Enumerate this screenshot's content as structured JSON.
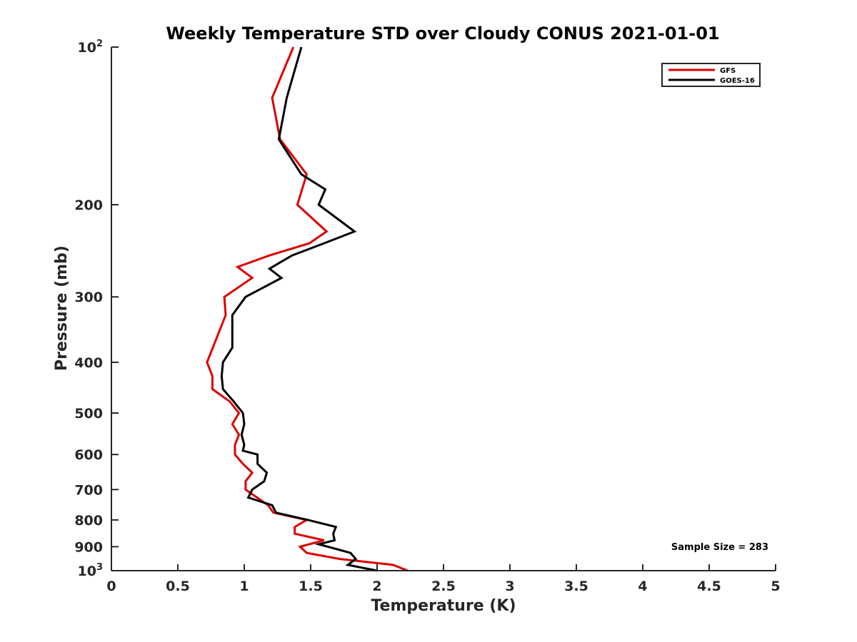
{
  "chart_data": {
    "type": "line",
    "title": "Weekly Temperature STD over Cloudy CONUS 2021-01-01",
    "xlabel": "Temperature (K)",
    "ylabel": "Pressure (mb)",
    "xlim": [
      0,
      5
    ],
    "ylim": [
      100,
      1000
    ],
    "y_scale": "log",
    "y_reversed": true,
    "x_ticks": [
      0,
      0.5,
      1,
      1.5,
      2,
      2.5,
      3,
      3.5,
      4,
      4.5,
      5
    ],
    "x_tick_labels": [
      "0",
      "0.5",
      "1",
      "1.5",
      "2",
      "2.5",
      "3",
      "3.5",
      "4",
      "4.5",
      "5"
    ],
    "y_ticks": [
      {
        "value": 100,
        "base": "10",
        "exp": "2"
      },
      {
        "value": 200,
        "label": "200"
      },
      {
        "value": 300,
        "label": "300"
      },
      {
        "value": 400,
        "label": "400"
      },
      {
        "value": 500,
        "label": "500"
      },
      {
        "value": 600,
        "label": "600"
      },
      {
        "value": 700,
        "label": "700"
      },
      {
        "value": 800,
        "label": "800"
      },
      {
        "value": 900,
        "label": "900"
      },
      {
        "value": 1000,
        "base": "10",
        "exp": "3"
      }
    ],
    "legend": {
      "location": "top-right"
    },
    "annotation": "Sample Size = 283",
    "series": [
      {
        "name": "GFS",
        "color": "#dd0000",
        "points": [
          [
            1.37,
            100
          ],
          [
            1.21,
            125
          ],
          [
            1.27,
            150
          ],
          [
            1.47,
            175
          ],
          [
            1.4,
            200
          ],
          [
            1.62,
            225
          ],
          [
            1.49,
            237
          ],
          [
            1.19,
            250
          ],
          [
            0.95,
            263
          ],
          [
            1.06,
            276
          ],
          [
            0.85,
            300
          ],
          [
            0.86,
            325
          ],
          [
            0.81,
            350
          ],
          [
            0.72,
            400
          ],
          [
            0.76,
            425
          ],
          [
            0.76,
            450
          ],
          [
            0.89,
            475
          ],
          [
            0.96,
            500
          ],
          [
            0.91,
            525
          ],
          [
            0.96,
            550
          ],
          [
            0.93,
            575
          ],
          [
            0.93,
            600
          ],
          [
            0.99,
            625
          ],
          [
            1.06,
            650
          ],
          [
            1.01,
            675
          ],
          [
            1.01,
            700
          ],
          [
            1.18,
            750
          ],
          [
            1.22,
            775
          ],
          [
            1.47,
            800
          ],
          [
            1.38,
            825
          ],
          [
            1.38,
            850
          ],
          [
            1.6,
            875
          ],
          [
            1.42,
            900
          ],
          [
            1.47,
            925
          ],
          [
            1.72,
            950
          ],
          [
            2.12,
            975
          ],
          [
            2.23,
            1000
          ]
        ]
      },
      {
        "name": "GOES-16",
        "color": "#000000",
        "points": [
          [
            1.43,
            100
          ],
          [
            1.32,
            125
          ],
          [
            1.26,
            150
          ],
          [
            1.43,
            175
          ],
          [
            1.61,
            187
          ],
          [
            1.56,
            200
          ],
          [
            1.83,
            225
          ],
          [
            1.6,
            237
          ],
          [
            1.36,
            250
          ],
          [
            1.19,
            265
          ],
          [
            1.28,
            276
          ],
          [
            1.01,
            300
          ],
          [
            0.91,
            325
          ],
          [
            0.91,
            375
          ],
          [
            0.84,
            400
          ],
          [
            0.83,
            425
          ],
          [
            0.84,
            450
          ],
          [
            0.92,
            475
          ],
          [
            0.99,
            500
          ],
          [
            1.0,
            525
          ],
          [
            0.98,
            550
          ],
          [
            1.0,
            575
          ],
          [
            0.99,
            590
          ],
          [
            1.1,
            600
          ],
          [
            1.1,
            625
          ],
          [
            1.17,
            650
          ],
          [
            1.15,
            675
          ],
          [
            1.06,
            700
          ],
          [
            1.03,
            725
          ],
          [
            1.21,
            750
          ],
          [
            1.24,
            775
          ],
          [
            1.48,
            800
          ],
          [
            1.69,
            825
          ],
          [
            1.67,
            850
          ],
          [
            1.68,
            875
          ],
          [
            1.56,
            890
          ],
          [
            1.8,
            925
          ],
          [
            1.84,
            950
          ],
          [
            1.78,
            975
          ],
          [
            2.0,
            1000
          ]
        ]
      }
    ]
  }
}
